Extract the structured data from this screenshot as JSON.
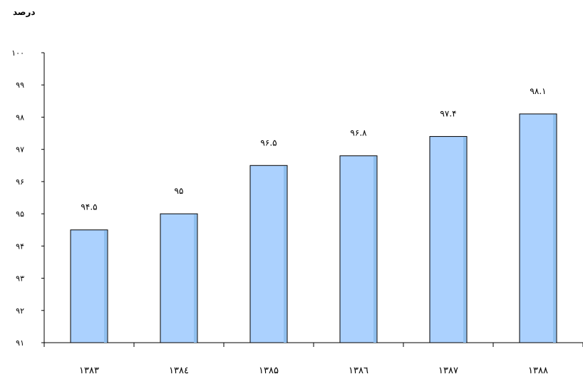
{
  "chart_data": {
    "type": "bar",
    "ylabel": "درصد",
    "categories": [
      "۱۳۸۳",
      "۱۳۸٤",
      "۱۳۸۵",
      "۱۳۸٦",
      "۱۳۸۷",
      "۱۳۸۸"
    ],
    "values": [
      94.5,
      95,
      96.5,
      96.8,
      97.4,
      98.1
    ],
    "data_labels": [
      "۹۴.۵",
      "۹۵",
      "۹۶.۵",
      "۹۶.۸",
      "۹۷.۴",
      "۹۸.۱"
    ],
    "ylim": [
      91,
      100
    ],
    "yticks": [
      91,
      92,
      93,
      94,
      95,
      96,
      97,
      98,
      99,
      100
    ],
    "ytick_labels": [
      "۹۱",
      "۹۲",
      "۹۳",
      "۹۴",
      "۹۵",
      "۹۶",
      "۹۷",
      "۹۸",
      "۹۹",
      "۱۰۰"
    ],
    "grid": false,
    "legend": "none",
    "colors": {
      "bar_fill": "#abd1fe",
      "bar_stroke": "#000000",
      "axis": "#000000"
    }
  }
}
